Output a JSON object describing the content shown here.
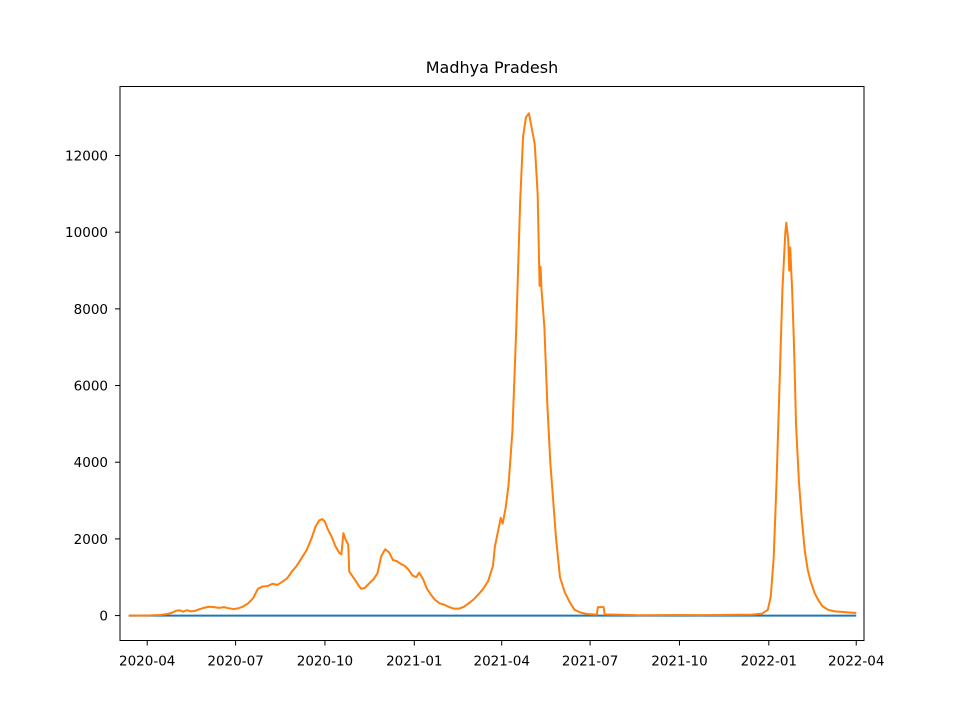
{
  "chart_data": {
    "type": "line",
    "title": "Madhya Pradesh",
    "xlabel": "",
    "ylabel": "",
    "grid": false,
    "legend": "none",
    "x_ticks": [
      {
        "date": "2020-04-01",
        "label": "2020-04"
      },
      {
        "date": "2020-07-01",
        "label": "2020-07"
      },
      {
        "date": "2020-10-01",
        "label": "2020-10"
      },
      {
        "date": "2021-01-01",
        "label": "2021-01"
      },
      {
        "date": "2021-04-01",
        "label": "2021-04"
      },
      {
        "date": "2021-07-01",
        "label": "2021-07"
      },
      {
        "date": "2021-10-01",
        "label": "2021-10"
      },
      {
        "date": "2022-01-01",
        "label": "2022-01"
      },
      {
        "date": "2022-04-01",
        "label": "2022-04"
      }
    ],
    "y_ticks": [
      0,
      2000,
      4000,
      6000,
      8000,
      10000,
      12000
    ],
    "xlim": [
      "2020-03-04",
      "2022-04-09"
    ],
    "ylim": [
      -650,
      13800
    ],
    "series": [
      {
        "color": "#1f77b4",
        "points": [
          [
            "2020-03-14",
            0
          ],
          [
            "2022-03-31",
            0
          ]
        ]
      },
      {
        "color": "#ff7f0e",
        "points": [
          [
            "2020-03-14",
            0
          ],
          [
            "2020-03-25",
            2
          ],
          [
            "2020-04-04",
            5
          ],
          [
            "2020-04-14",
            15
          ],
          [
            "2020-04-22",
            40
          ],
          [
            "2020-04-27",
            80
          ],
          [
            "2020-05-01",
            130
          ],
          [
            "2020-05-05",
            135
          ],
          [
            "2020-05-08",
            100
          ],
          [
            "2020-05-12",
            140
          ],
          [
            "2020-05-16",
            110
          ],
          [
            "2020-05-20",
            120
          ],
          [
            "2020-05-24",
            160
          ],
          [
            "2020-05-29",
            200
          ],
          [
            "2020-06-04",
            230
          ],
          [
            "2020-06-09",
            220
          ],
          [
            "2020-06-14",
            200
          ],
          [
            "2020-06-19",
            220
          ],
          [
            "2020-06-24",
            190
          ],
          [
            "2020-06-29",
            170
          ],
          [
            "2020-07-04",
            190
          ],
          [
            "2020-07-09",
            240
          ],
          [
            "2020-07-14",
            320
          ],
          [
            "2020-07-19",
            450
          ],
          [
            "2020-07-24",
            700
          ],
          [
            "2020-07-29",
            760
          ],
          [
            "2020-08-03",
            770
          ],
          [
            "2020-08-08",
            830
          ],
          [
            "2020-08-13",
            800
          ],
          [
            "2020-08-18",
            880
          ],
          [
            "2020-08-23",
            970
          ],
          [
            "2020-08-28",
            1150
          ],
          [
            "2020-09-02",
            1300
          ],
          [
            "2020-09-07",
            1500
          ],
          [
            "2020-09-12",
            1700
          ],
          [
            "2020-09-17",
            2000
          ],
          [
            "2020-09-21",
            2300
          ],
          [
            "2020-09-25",
            2480
          ],
          [
            "2020-09-28",
            2520
          ],
          [
            "2020-10-01",
            2450
          ],
          [
            "2020-10-04",
            2250
          ],
          [
            "2020-10-08",
            2050
          ],
          [
            "2020-10-12",
            1800
          ],
          [
            "2020-10-16",
            1630
          ],
          [
            "2020-10-18",
            1600
          ],
          [
            "2020-10-20",
            2150
          ],
          [
            "2020-10-22",
            2000
          ],
          [
            "2020-10-25",
            1850
          ],
          [
            "2020-10-26",
            1150
          ],
          [
            "2020-10-30",
            1000
          ],
          [
            "2020-11-03",
            850
          ],
          [
            "2020-11-07",
            700
          ],
          [
            "2020-11-11",
            720
          ],
          [
            "2020-11-16",
            850
          ],
          [
            "2020-11-20",
            950
          ],
          [
            "2020-11-24",
            1100
          ],
          [
            "2020-11-28",
            1550
          ],
          [
            "2020-12-02",
            1730
          ],
          [
            "2020-12-06",
            1650
          ],
          [
            "2020-12-10",
            1450
          ],
          [
            "2020-12-14",
            1420
          ],
          [
            "2020-12-18",
            1350
          ],
          [
            "2020-12-22",
            1300
          ],
          [
            "2020-12-26",
            1200
          ],
          [
            "2020-12-30",
            1050
          ],
          [
            "2021-01-03",
            1000
          ],
          [
            "2021-01-06",
            1120
          ],
          [
            "2021-01-10",
            950
          ],
          [
            "2021-01-14",
            700
          ],
          [
            "2021-01-18",
            550
          ],
          [
            "2021-01-22",
            420
          ],
          [
            "2021-01-27",
            320
          ],
          [
            "2021-02-01",
            280
          ],
          [
            "2021-02-06",
            220
          ],
          [
            "2021-02-11",
            180
          ],
          [
            "2021-02-16",
            180
          ],
          [
            "2021-02-21",
            230
          ],
          [
            "2021-02-26",
            320
          ],
          [
            "2021-03-03",
            420
          ],
          [
            "2021-03-08",
            550
          ],
          [
            "2021-03-13",
            700
          ],
          [
            "2021-03-18",
            900
          ],
          [
            "2021-03-23",
            1300
          ],
          [
            "2021-03-25",
            1800
          ],
          [
            "2021-03-29",
            2300
          ],
          [
            "2021-03-31",
            2550
          ],
          [
            "2021-04-02",
            2400
          ],
          [
            "2021-04-05",
            2800
          ],
          [
            "2021-04-08",
            3400
          ],
          [
            "2021-04-12",
            4800
          ],
          [
            "2021-04-16",
            7500
          ],
          [
            "2021-04-20",
            10800
          ],
          [
            "2021-04-23",
            12500
          ],
          [
            "2021-04-26",
            13000
          ],
          [
            "2021-04-29",
            13100
          ],
          [
            "2021-05-02",
            12700
          ],
          [
            "2021-05-05",
            12300
          ],
          [
            "2021-05-08",
            11000
          ],
          [
            "2021-05-10",
            8600
          ],
          [
            "2021-05-11",
            9100
          ],
          [
            "2021-05-12",
            8500
          ],
          [
            "2021-05-15",
            7500
          ],
          [
            "2021-05-16",
            6800
          ],
          [
            "2021-05-18",
            5500
          ],
          [
            "2021-05-21",
            4000
          ],
          [
            "2021-05-24",
            3000
          ],
          [
            "2021-05-27",
            2000
          ],
          [
            "2021-05-31",
            1000
          ],
          [
            "2021-06-05",
            600
          ],
          [
            "2021-06-10",
            350
          ],
          [
            "2021-06-15",
            150
          ],
          [
            "2021-06-21",
            80
          ],
          [
            "2021-06-28",
            40
          ],
          [
            "2021-07-08",
            25
          ],
          [
            "2021-07-09",
            220
          ],
          [
            "2021-07-15",
            220
          ],
          [
            "2021-07-16",
            30
          ],
          [
            "2021-08-01",
            20
          ],
          [
            "2021-08-20",
            10
          ],
          [
            "2021-09-10",
            12
          ],
          [
            "2021-10-01",
            15
          ],
          [
            "2021-10-20",
            12
          ],
          [
            "2021-11-10",
            15
          ],
          [
            "2021-12-01",
            20
          ],
          [
            "2021-12-15",
            25
          ],
          [
            "2021-12-25",
            50
          ],
          [
            "2021-12-31",
            150
          ],
          [
            "2022-01-03",
            500
          ],
          [
            "2022-01-06",
            1500
          ],
          [
            "2022-01-09",
            3500
          ],
          [
            "2022-01-12",
            6000
          ],
          [
            "2022-01-15",
            8500
          ],
          [
            "2022-01-18",
            10000
          ],
          [
            "2022-01-19",
            10250
          ],
          [
            "2022-01-21",
            9800
          ],
          [
            "2022-01-22",
            9000
          ],
          [
            "2022-01-23",
            9600
          ],
          [
            "2022-01-25",
            8500
          ],
          [
            "2022-01-27",
            7000
          ],
          [
            "2022-01-29",
            5000
          ],
          [
            "2022-02-01",
            3500
          ],
          [
            "2022-02-04",
            2500
          ],
          [
            "2022-02-07",
            1700
          ],
          [
            "2022-02-10",
            1200
          ],
          [
            "2022-02-13",
            900
          ],
          [
            "2022-02-17",
            600
          ],
          [
            "2022-02-21",
            400
          ],
          [
            "2022-02-25",
            250
          ],
          [
            "2022-03-03",
            150
          ],
          [
            "2022-03-10",
            110
          ],
          [
            "2022-03-20",
            90
          ],
          [
            "2022-03-31",
            70
          ]
        ]
      }
    ]
  }
}
